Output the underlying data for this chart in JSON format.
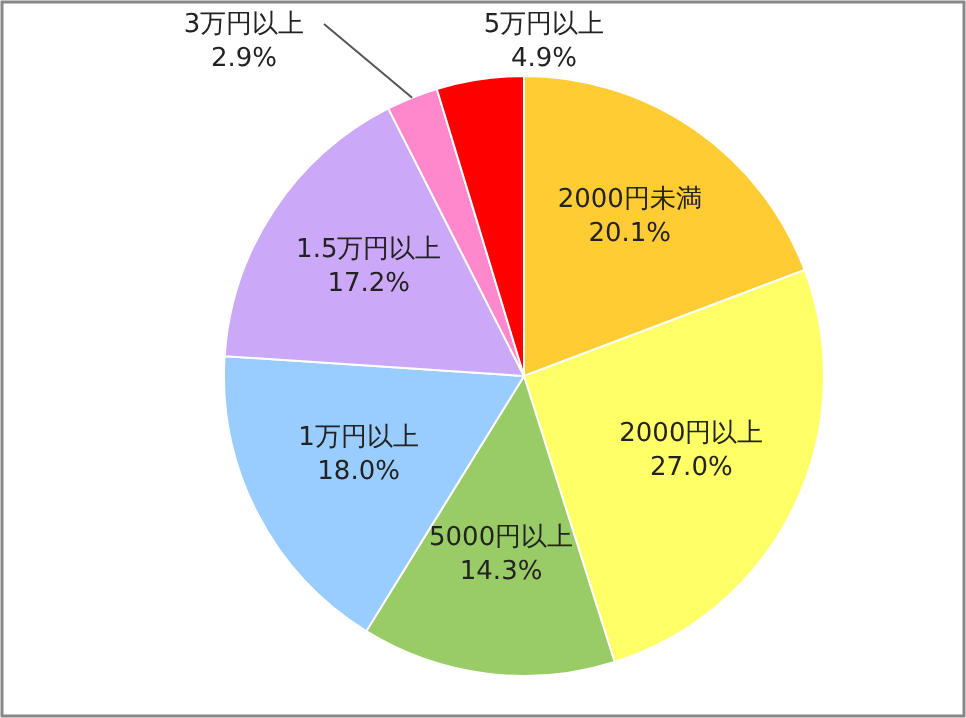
{
  "chart_data": {
    "type": "pie",
    "categories": [
      "2000円未満",
      "2000円以上",
      "5000円以上",
      "1万円以上",
      "1.5万円以上",
      "3万円以上",
      "5万円以上"
    ],
    "values": [
      20.1,
      27.0,
      14.3,
      18.0,
      17.2,
      2.9,
      4.9
    ],
    "colors": [
      "#ffcc33",
      "#ffff66",
      "#99cc66",
      "#99ccff",
      "#cca8f8",
      "#ff88cc",
      "#ff0000"
    ],
    "value_labels": [
      "20.1%",
      "27.0%",
      "14.3%",
      "18.0%",
      "17.2%",
      "2.9%",
      "4.9%"
    ]
  }
}
